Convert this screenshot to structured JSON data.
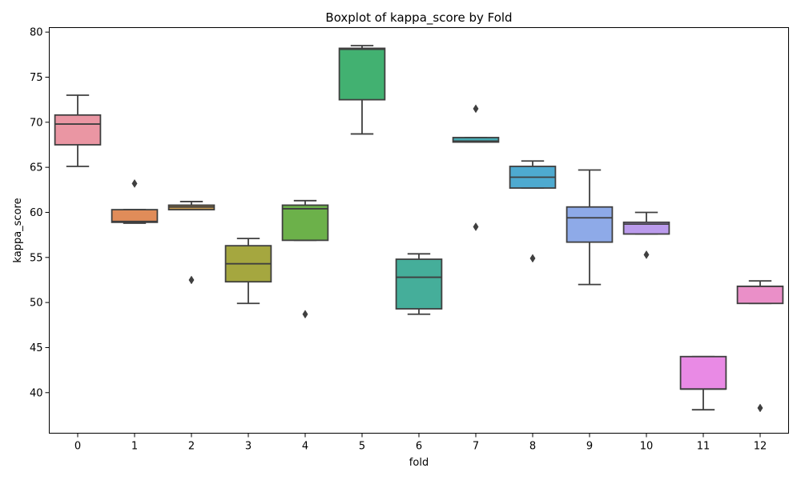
{
  "chart_data": {
    "type": "boxplot",
    "title": "Boxplot of kappa_score by Fold",
    "xlabel": "fold",
    "ylabel": "kappa_score",
    "ylim": [
      35.5,
      80.5
    ],
    "yticks": [
      40,
      45,
      50,
      55,
      60,
      65,
      70,
      75,
      80
    ],
    "grid": false,
    "categories": [
      "0",
      "1",
      "2",
      "3",
      "4",
      "5",
      "6",
      "7",
      "8",
      "9",
      "10",
      "11",
      "12"
    ],
    "boxes": [
      {
        "fold": "0",
        "color": "#ea96a3",
        "whislo": 65.1,
        "q1": 67.5,
        "med": 69.8,
        "q3": 70.8,
        "whishi": 73.0,
        "fliers": []
      },
      {
        "fold": "1",
        "color": "#e08c59",
        "whislo": 58.8,
        "q1": 58.9,
        "med": 59.0,
        "q3": 60.3,
        "whishi": 60.3,
        "fliers": [
          63.2
        ]
      },
      {
        "fold": "2",
        "color": "#c79a4e",
        "whislo": 60.3,
        "q1": 60.3,
        "med": 60.6,
        "q3": 60.8,
        "whishi": 61.2,
        "fliers": [
          52.5
        ]
      },
      {
        "fold": "3",
        "color": "#a5a73f",
        "whislo": 49.9,
        "q1": 52.3,
        "med": 54.3,
        "q3": 56.3,
        "whishi": 57.1,
        "fliers": []
      },
      {
        "fold": "4",
        "color": "#6cb14a",
        "whislo": 56.9,
        "q1": 56.9,
        "med": 60.4,
        "q3": 60.8,
        "whishi": 61.3,
        "fliers": [
          48.7
        ]
      },
      {
        "fold": "5",
        "color": "#42b171",
        "whislo": 68.7,
        "q1": 72.5,
        "med": 78.1,
        "q3": 78.2,
        "whishi": 78.5,
        "fliers": []
      },
      {
        "fold": "6",
        "color": "#45ae9a",
        "whislo": 48.7,
        "q1": 49.3,
        "med": 52.8,
        "q3": 54.8,
        "whishi": 55.4,
        "fliers": []
      },
      {
        "fold": "7",
        "color": "#47abb3",
        "whislo": 67.8,
        "q1": 67.8,
        "med": 67.9,
        "q3": 68.3,
        "whishi": 68.3,
        "fliers": [
          71.5,
          58.4
        ]
      },
      {
        "fold": "8",
        "color": "#4eaad0",
        "whislo": 62.7,
        "q1": 62.7,
        "med": 63.9,
        "q3": 65.1,
        "whishi": 65.7,
        "fliers": [
          54.9
        ]
      },
      {
        "fold": "9",
        "color": "#8eaae8",
        "whislo": 52.0,
        "q1": 56.7,
        "med": 59.4,
        "q3": 60.6,
        "whishi": 64.7,
        "fliers": []
      },
      {
        "fold": "10",
        "color": "#bb9bec",
        "whislo": 57.6,
        "q1": 57.6,
        "med": 58.7,
        "q3": 58.9,
        "whishi": 60.0,
        "fliers": [
          55.3
        ]
      },
      {
        "fold": "11",
        "color": "#e98ae5",
        "whislo": 38.1,
        "q1": 40.4,
        "med": 40.4,
        "q3": 44.0,
        "whishi": 44.0,
        "fliers": []
      },
      {
        "fold": "12",
        "color": "#ea8fc8",
        "whislo": 49.9,
        "q1": 49.9,
        "med": 51.8,
        "q3": 51.8,
        "whishi": 52.4,
        "fliers": [
          38.3
        ]
      }
    ]
  }
}
